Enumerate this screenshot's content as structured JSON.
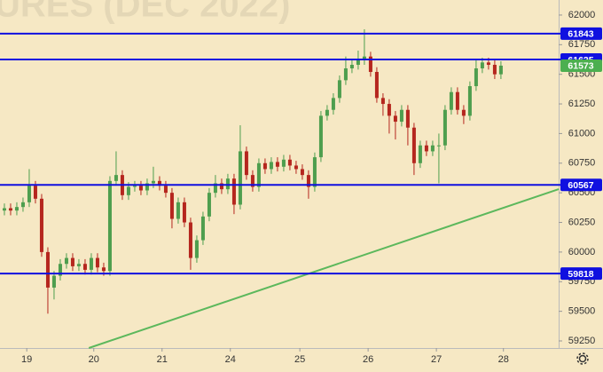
{
  "chart_data": {
    "type": "candlestick",
    "title": "URES (DEC 2022)",
    "x": [
      0,
      1,
      2,
      3,
      4,
      5,
      6,
      7,
      8,
      9,
      10,
      11,
      12,
      13,
      14,
      15,
      16,
      17,
      18,
      19,
      20,
      21,
      22,
      23,
      24,
      25,
      26,
      27,
      28,
      29,
      30,
      31,
      32,
      33,
      34,
      35,
      36,
      37,
      38,
      39,
      40,
      41,
      42,
      43,
      44,
      45,
      46,
      47,
      48,
      49,
      50,
      51,
      52,
      53,
      54,
      55,
      56,
      57,
      58,
      59,
      60,
      61,
      62,
      63,
      64,
      65,
      66,
      67,
      68,
      69,
      70,
      71,
      72,
      73,
      74,
      75,
      76,
      77,
      78,
      79,
      80
    ],
    "open": [
      60350,
      60370,
      60350,
      60380,
      60420,
      60560,
      60450,
      60000,
      59700,
      59800,
      59900,
      59950,
      59880,
      59900,
      59850,
      59950,
      59870,
      59840,
      60600,
      60650,
      60480,
      60550,
      60560,
      60520,
      60580,
      60600,
      60560,
      60500,
      60280,
      60420,
      60250,
      59950,
      60100,
      60300,
      60500,
      60580,
      60530,
      60620,
      60400,
      60850,
      60650,
      60550,
      60750,
      60700,
      60760,
      60720,
      60780,
      60730,
      60700,
      60650,
      60550,
      60800,
      61150,
      61200,
      61300,
      61450,
      61550,
      61580,
      61620,
      61650,
      61520,
      61300,
      61250,
      61150,
      61100,
      61200,
      61050,
      60750,
      60900,
      60850,
      60900,
      60900,
      61200,
      61350,
      61200,
      61150,
      61400,
      61550,
      61600,
      61580,
      61500
    ],
    "high": [
      60410,
      60410,
      60420,
      60460,
      60700,
      60600,
      60490,
      60040,
      59840,
      59940,
      59990,
      59990,
      59940,
      59940,
      59990,
      59990,
      59910,
      60640,
      60850,
      60690,
      60590,
      60600,
      60600,
      60620,
      60720,
      60640,
      60600,
      60540,
      60460,
      60460,
      60290,
      60140,
      60340,
      60540,
      60650,
      60620,
      60660,
      60660,
      61070,
      60890,
      60690,
      60790,
      60790,
      60800,
      60800,
      60820,
      60820,
      60770,
      60740,
      60690,
      60840,
      61190,
      61240,
      61340,
      61490,
      61650,
      61620,
      61700,
      61880,
      61690,
      61560,
      61340,
      61290,
      61190,
      61240,
      61240,
      61090,
      60940,
      60940,
      60940,
      61000,
      61240,
      61390,
      61390,
      61240,
      61440,
      61620,
      61640,
      61640,
      61620,
      61610
    ],
    "low": [
      60310,
      60310,
      60310,
      60340,
      60380,
      60410,
      59960,
      59480,
      59600,
      59760,
      59860,
      59840,
      59840,
      59810,
      59810,
      59830,
      59800,
      59800,
      60560,
      60440,
      60440,
      60510,
      60480,
      60480,
      60540,
      60520,
      60460,
      60200,
      60240,
      60210,
      59850,
      59910,
      60060,
      60260,
      60460,
      60490,
      60490,
      60320,
      60360,
      60610,
      60510,
      60510,
      60660,
      60660,
      60680,
      60680,
      60690,
      60660,
      60610,
      60450,
      60510,
      60760,
      61110,
      61160,
      61260,
      61410,
      61510,
      61540,
      61580,
      61480,
      61260,
      61150,
      61000,
      60950,
      61060,
      60900,
      60650,
      60710,
      60810,
      60810,
      60580,
      60860,
      61160,
      61160,
      61080,
      61110,
      61360,
      61510,
      61540,
      61460,
      61460
    ],
    "close": [
      60370,
      60350,
      60380,
      60420,
      60560,
      60450,
      60000,
      59700,
      59800,
      59900,
      59950,
      59880,
      59900,
      59850,
      59950,
      59870,
      59840,
      60600,
      60650,
      60480,
      60550,
      60560,
      60520,
      60580,
      60600,
      60560,
      60500,
      60280,
      60420,
      60250,
      59950,
      60100,
      60300,
      60500,
      60580,
      60530,
      60620,
      60400,
      60850,
      60650,
      60550,
      60750,
      60700,
      60760,
      60720,
      60780,
      60730,
      60700,
      60650,
      60550,
      60800,
      61150,
      61200,
      61300,
      61450,
      61550,
      61580,
      61620,
      61650,
      61520,
      61300,
      61250,
      61150,
      61100,
      61200,
      61050,
      60750,
      60900,
      60850,
      60900,
      60900,
      61200,
      61350,
      61200,
      61150,
      61400,
      61550,
      61600,
      61580,
      61500,
      61573
    ],
    "up_color": "#4e9e4e",
    "down_color": "#b5261e",
    "xlim": [
      -0.71,
      89.3
    ],
    "ylim": [
      59190,
      62127
    ],
    "xticks": [
      {
        "value": 3.6,
        "label": "19"
      },
      {
        "value": 14.4,
        "label": "20"
      },
      {
        "value": 25.4,
        "label": "21"
      },
      {
        "value": 36.4,
        "label": "24"
      },
      {
        "value": 47.6,
        "label": "25"
      },
      {
        "value": 58.6,
        "label": "26"
      },
      {
        "value": 69.6,
        "label": "27"
      },
      {
        "value": 80.4,
        "label": "28"
      }
    ],
    "yticks": [
      62000,
      61750,
      61500,
      61250,
      61000,
      60750,
      60500,
      60250,
      60000,
      59750,
      59500,
      59250
    ],
    "hlines": [
      61843,
      61625,
      60567,
      59818
    ],
    "hline_color": "#1010e0",
    "last_price": 61573,
    "last_color": "#4caf50",
    "trendline": {
      "x": [
        13.6,
        89.3
      ],
      "y": [
        59190,
        60531
      ],
      "color": "#5cb85c"
    }
  }
}
